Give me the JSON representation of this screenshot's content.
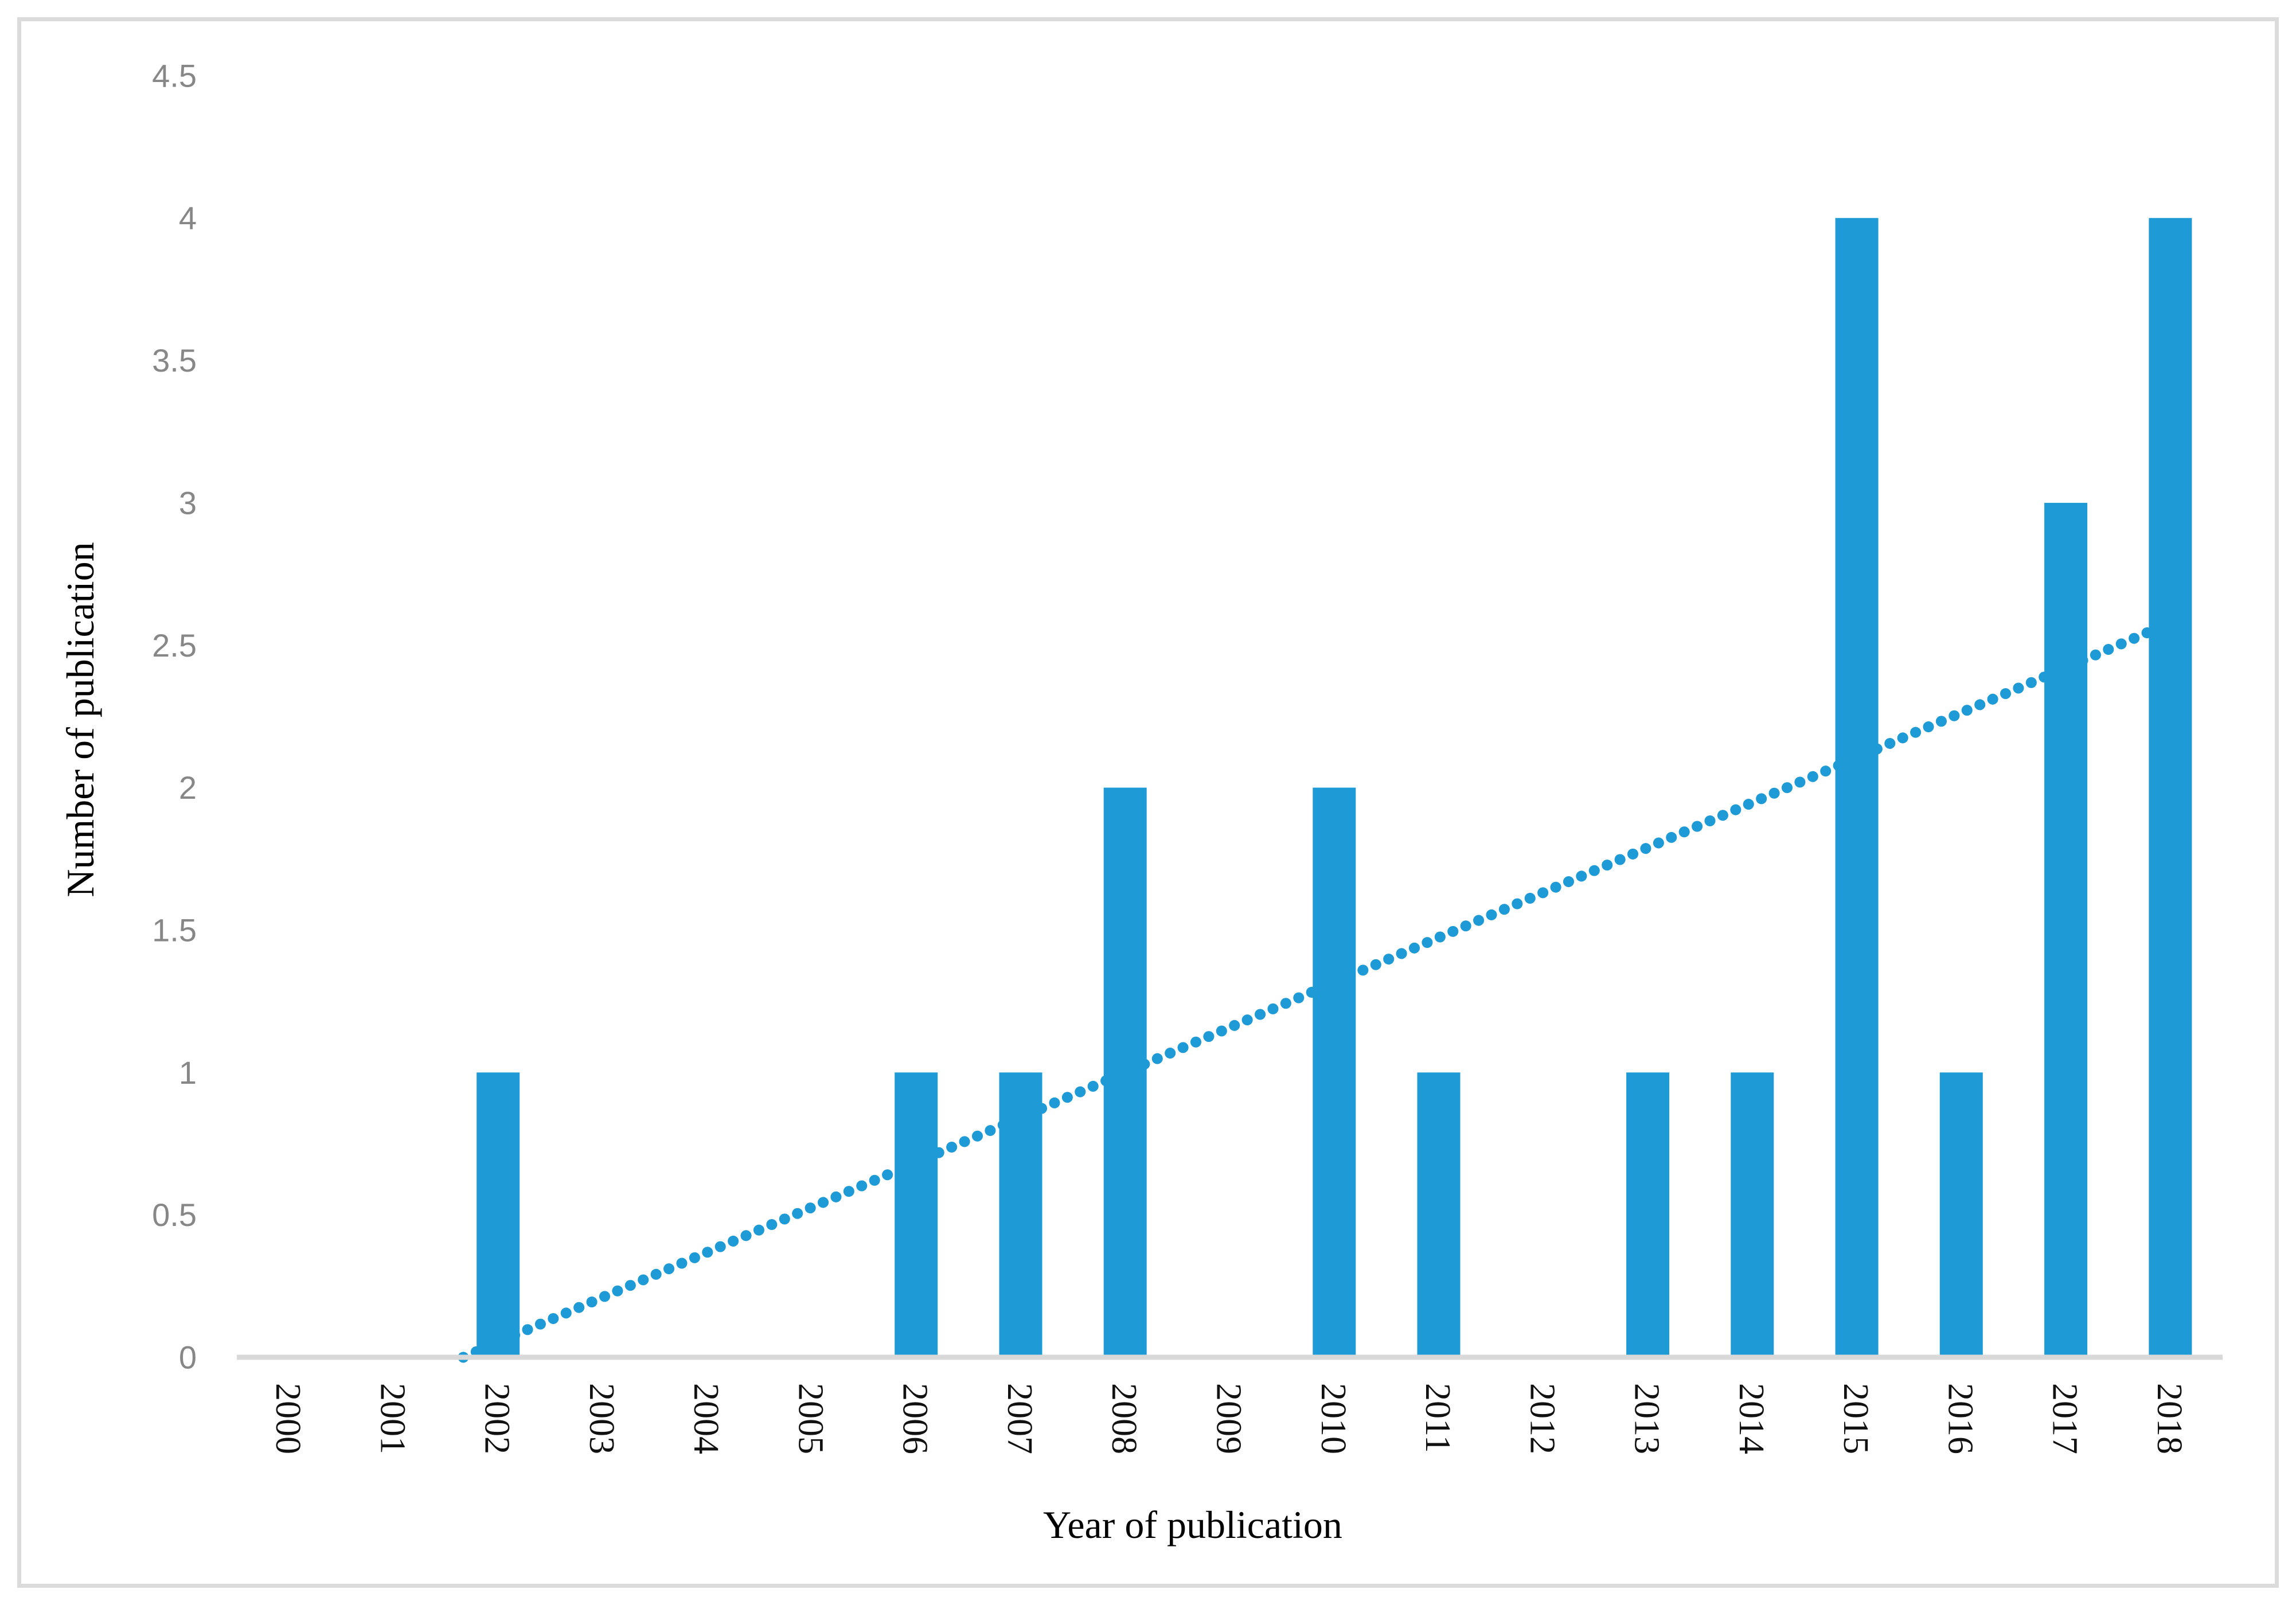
{
  "figure": {
    "background_color": "#FFFFFF",
    "frame_color": "#DBDBDB"
  },
  "chart_data": {
    "type": "bar",
    "title": "",
    "xlabel": "Year of publication",
    "ylabel": "Number of publication",
    "categories": [
      "2000",
      "2001",
      "2002",
      "2003",
      "2004",
      "2005",
      "2006",
      "2007",
      "2008",
      "2009",
      "2010",
      "2011",
      "2012",
      "2013",
      "2014",
      "2015",
      "2016",
      "2017",
      "2018"
    ],
    "values": [
      0,
      0,
      1,
      0,
      0,
      0,
      1,
      1,
      2,
      0,
      2,
      1,
      0,
      1,
      1,
      4,
      1,
      3,
      4
    ],
    "ylim": [
      0,
      4.5
    ],
    "ytick_labels": [
      "0",
      "0.5",
      "1",
      "1.5",
      "2",
      "2.5",
      "3",
      "3.5",
      "4",
      "4.5"
    ],
    "ytick_values": [
      0,
      0.5,
      1,
      1.5,
      2,
      2.5,
      3,
      3.5,
      4,
      4.5
    ],
    "grid": false,
    "legend": "none",
    "bar_color": "#1E9BD7",
    "axis_line_color": "#D9D9D9",
    "ytick_color": "#878787",
    "xtick_color": "#111111",
    "axis_title_color": "#000000",
    "trendline": {
      "type": "linear",
      "style": "dotted",
      "color": "#1E9BD7",
      "slope_per_category": 0.1579,
      "intercept": -0.4211,
      "category_range": [
        1,
        19
      ],
      "clipped_at_y": 0
    }
  }
}
